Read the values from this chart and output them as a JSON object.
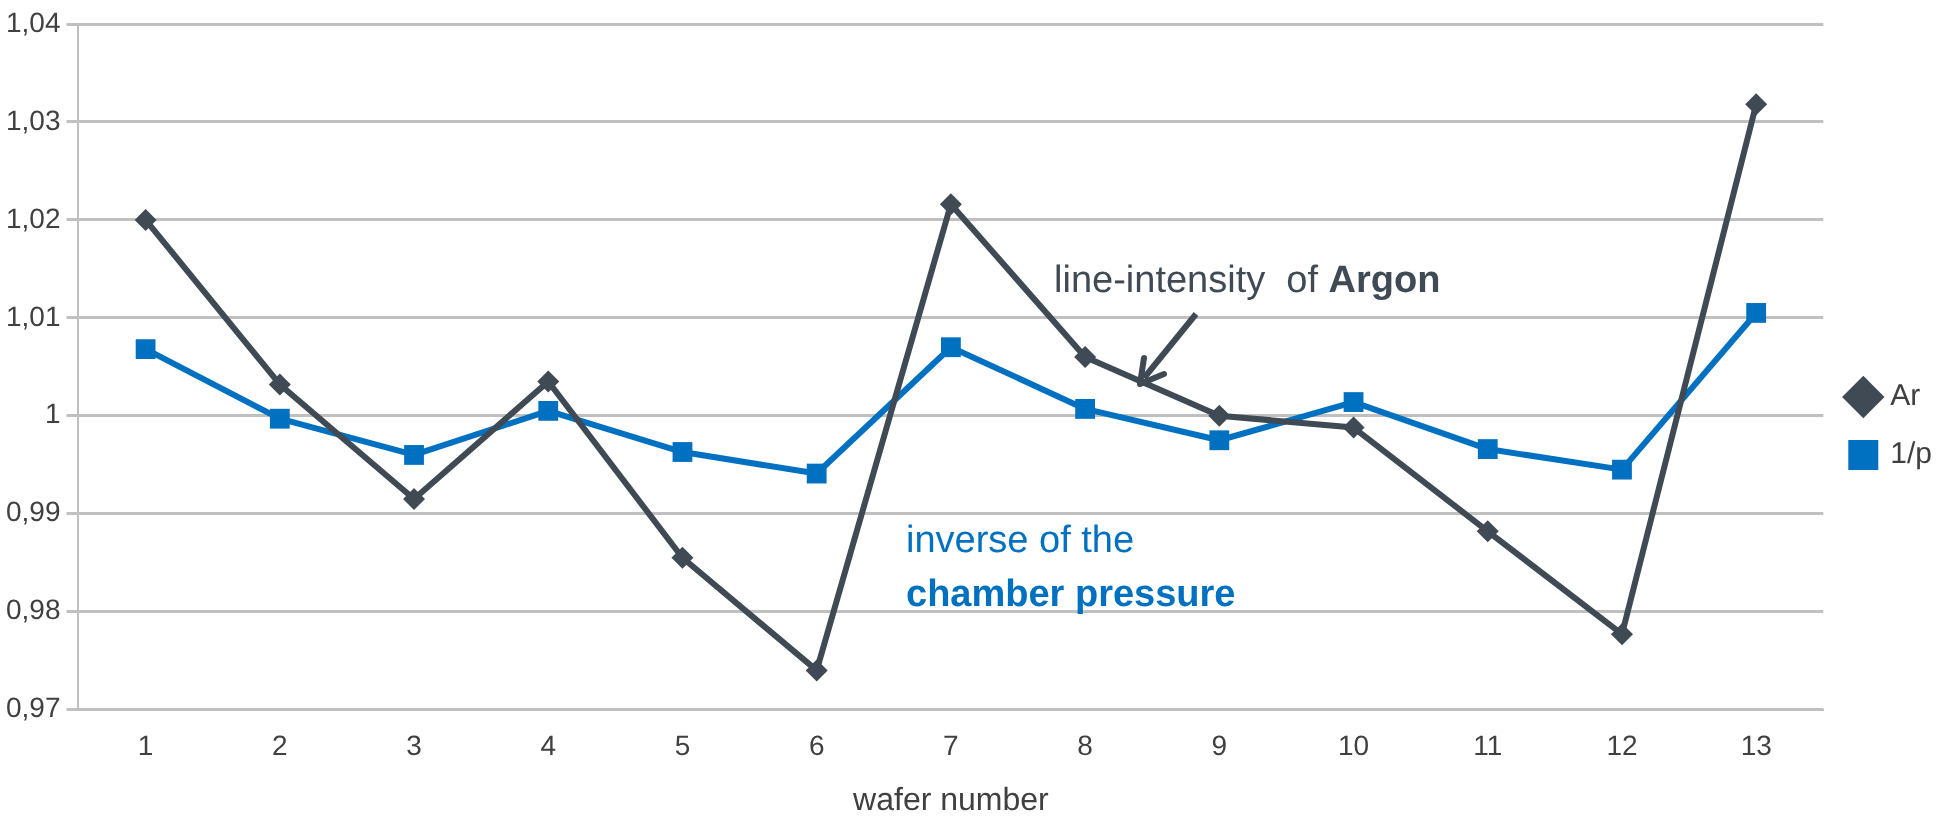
{
  "chart_data": {
    "type": "line",
    "xlabel": "wafer number",
    "categories": [
      "1",
      "2",
      "3",
      "4",
      "5",
      "6",
      "7",
      "8",
      "9",
      "10",
      "11",
      "12",
      "13"
    ],
    "series": [
      {
        "name": "Ar",
        "color": "#404a54",
        "marker": "diamond",
        "values": [
          1.02,
          1.0032,
          0.9915,
          1.0035,
          0.9855,
          0.974,
          1.0216,
          1.006,
          1.0,
          0.9988,
          0.9882,
          0.9777,
          1.0318
        ]
      },
      {
        "name": "1/p",
        "color": "#0070c0",
        "marker": "square",
        "values": [
          1.0068,
          0.9997,
          0.996,
          1.0005,
          0.9963,
          0.9941,
          1.007,
          1.0007,
          0.9975,
          1.0014,
          0.9966,
          0.9945,
          1.0105
        ]
      }
    ],
    "ylim": [
      0.97,
      1.04
    ],
    "yticks": [
      {
        "value": 0.97,
        "label": "0,97"
      },
      {
        "value": 0.98,
        "label": "0,98"
      },
      {
        "value": 0.99,
        "label": "0,99"
      },
      {
        "value": 1,
        "label": "1"
      },
      {
        "value": 1.01,
        "label": "1,01"
      },
      {
        "value": 1.02,
        "label": "1,02"
      },
      {
        "value": 1.03,
        "label": "1,03"
      },
      {
        "value": 1.04,
        "label": "1,04"
      }
    ],
    "grid": "y",
    "legend": "right",
    "line_style": "solid",
    "annotations": [
      "line-intensity  of Argon",
      "inverse of the chamber pressure"
    ]
  }
}
